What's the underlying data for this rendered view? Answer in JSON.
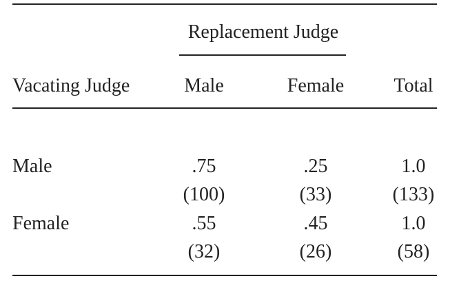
{
  "table": {
    "group_header": "Replacement Judge",
    "columns": [
      "Vacating Judge",
      "Male",
      "Female",
      "Total"
    ],
    "rows": [
      {
        "label": "Male",
        "shares": [
          ".75",
          ".25",
          "1.0"
        ],
        "counts": [
          "(100)",
          "(33)",
          "(133)"
        ]
      },
      {
        "label": "Female",
        "shares": [
          ".55",
          ".45",
          "1.0"
        ],
        "counts": [
          "(32)",
          "(26)",
          "(58)"
        ]
      }
    ]
  }
}
